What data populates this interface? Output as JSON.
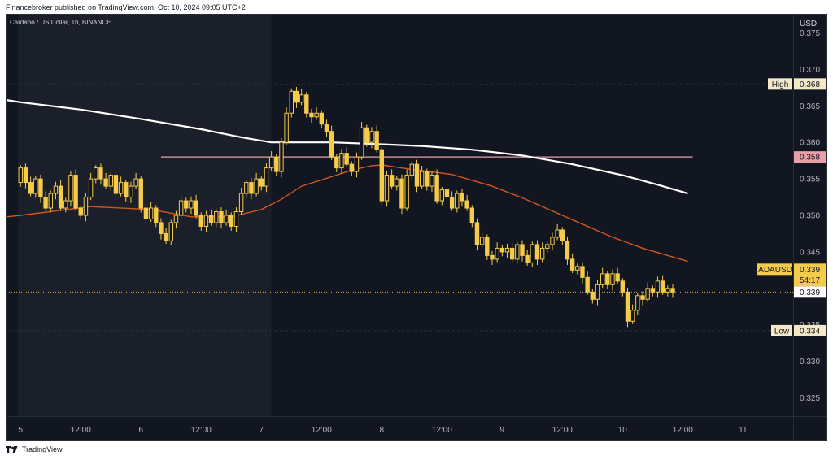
{
  "publisher_line": "Financebroker published on TradingView.com, Oct 10, 2024 09:05 UTC+2",
  "symbol_line": "Cardano / US Dollar, 1h, BINANCE",
  "footer_brand": "TradingView",
  "icons": {
    "logo": "tradingview-logo-icon"
  },
  "colors": {
    "background": "#121620",
    "candle": "#f5cb4b",
    "sma_white": "#ffffff",
    "sma_orange": "#d4561f",
    "high_line": "#e8a0a8",
    "last_price_line": "#f5cb4b",
    "low_line": "#6b6f7a"
  },
  "chart_data": {
    "type": "candlestick",
    "currency": "USD",
    "ylim": [
      0.3225,
      0.3775
    ],
    "y_ticks": [
      "0.375",
      "0.370",
      "0.365",
      "0.360",
      "0.355",
      "0.350",
      "0.345",
      "0.335",
      "0.330",
      "0.325"
    ],
    "x_ticks": [
      "5",
      "12:00",
      "6",
      "12:00",
      "7",
      "12:00",
      "8",
      "12:00",
      "9",
      "12:00",
      "10",
      "12:00",
      "11"
    ],
    "x_tick_hours": [
      0,
      12,
      24,
      36,
      48,
      60,
      72,
      84,
      96,
      108,
      120,
      132,
      144
    ],
    "x_range_hours": [
      -2.8,
      154
    ],
    "labels": {
      "high": {
        "text": "High",
        "value": "0.368"
      },
      "resistance": {
        "value": "0.358"
      },
      "symbol": {
        "text": "ADAUSD",
        "value": "0.339",
        "countdown": "54:17"
      },
      "last": {
        "value": "0.339"
      },
      "low": {
        "text": "Low",
        "value": "0.334"
      }
    },
    "levels": {
      "high": 0.368,
      "resistance": 0.358,
      "last": 0.3395,
      "low": 0.3342
    },
    "resistance_span_hours": [
      28,
      134
    ],
    "shaded_region_hours": [
      -0.5,
      50
    ],
    "closes": [
      0.3565,
      0.3545,
      0.353,
      0.355,
      0.3525,
      0.351,
      0.353,
      0.354,
      0.351,
      0.352,
      0.3555,
      0.351,
      0.35,
      0.3525,
      0.355,
      0.3565,
      0.355,
      0.354,
      0.3555,
      0.353,
      0.3545,
      0.3525,
      0.354,
      0.355,
      0.351,
      0.3495,
      0.351,
      0.349,
      0.3475,
      0.3465,
      0.349,
      0.35,
      0.352,
      0.351,
      0.352,
      0.35,
      0.3485,
      0.35,
      0.349,
      0.3505,
      0.349,
      0.35,
      0.3485,
      0.3505,
      0.353,
      0.3545,
      0.353,
      0.355,
      0.354,
      0.3565,
      0.358,
      0.356,
      0.36,
      0.364,
      0.367,
      0.3655,
      0.3665,
      0.364,
      0.3635,
      0.364,
      0.3625,
      0.3615,
      0.358,
      0.3565,
      0.3585,
      0.357,
      0.356,
      0.358,
      0.362,
      0.36,
      0.3615,
      0.359,
      0.352,
      0.3555,
      0.354,
      0.355,
      0.351,
      0.3555,
      0.357,
      0.354,
      0.356,
      0.354,
      0.3555,
      0.352,
      0.3535,
      0.3525,
      0.351,
      0.353,
      0.352,
      0.351,
      0.349,
      0.346,
      0.347,
      0.3445,
      0.344,
      0.3455,
      0.345,
      0.3455,
      0.344,
      0.346,
      0.3445,
      0.3435,
      0.346,
      0.344,
      0.3455,
      0.346,
      0.347,
      0.348,
      0.3465,
      0.344,
      0.3425,
      0.343,
      0.3415,
      0.3395,
      0.3385,
      0.3405,
      0.342,
      0.3405,
      0.342,
      0.341,
      0.3395,
      0.3355,
      0.337,
      0.339,
      0.3385,
      0.34,
      0.3395,
      0.341,
      0.3395,
      0.34,
      0.3395
    ],
    "sma_orange": [
      [
        -2.8,
        0.3498
      ],
      [
        0,
        0.35
      ],
      [
        14,
        0.3512
      ],
      [
        26,
        0.3508
      ],
      [
        34,
        0.3498
      ],
      [
        42,
        0.3498
      ],
      [
        48,
        0.3508
      ],
      [
        52,
        0.3522
      ],
      [
        56,
        0.354
      ],
      [
        62,
        0.3553
      ],
      [
        66,
        0.3562
      ],
      [
        70,
        0.3568
      ],
      [
        72,
        0.3569
      ],
      [
        78,
        0.3563
      ],
      [
        86,
        0.3556
      ],
      [
        94,
        0.354
      ],
      [
        100,
        0.3524
      ],
      [
        106,
        0.3506
      ],
      [
        112,
        0.3488
      ],
      [
        118,
        0.347
      ],
      [
        124,
        0.3455
      ],
      [
        128,
        0.3447
      ],
      [
        133,
        0.3437
      ]
    ],
    "sma_white": [
      [
        -2.8,
        0.3658
      ],
      [
        0,
        0.3655
      ],
      [
        12,
        0.3645
      ],
      [
        24,
        0.3632
      ],
      [
        36,
        0.3618
      ],
      [
        44,
        0.3607
      ],
      [
        50,
        0.36
      ],
      [
        56,
        0.36
      ],
      [
        62,
        0.36
      ],
      [
        70,
        0.3598
      ],
      [
        80,
        0.3595
      ],
      [
        90,
        0.359
      ],
      [
        100,
        0.3582
      ],
      [
        110,
        0.357
      ],
      [
        120,
        0.3555
      ],
      [
        127,
        0.3542
      ],
      [
        133,
        0.353
      ]
    ]
  }
}
